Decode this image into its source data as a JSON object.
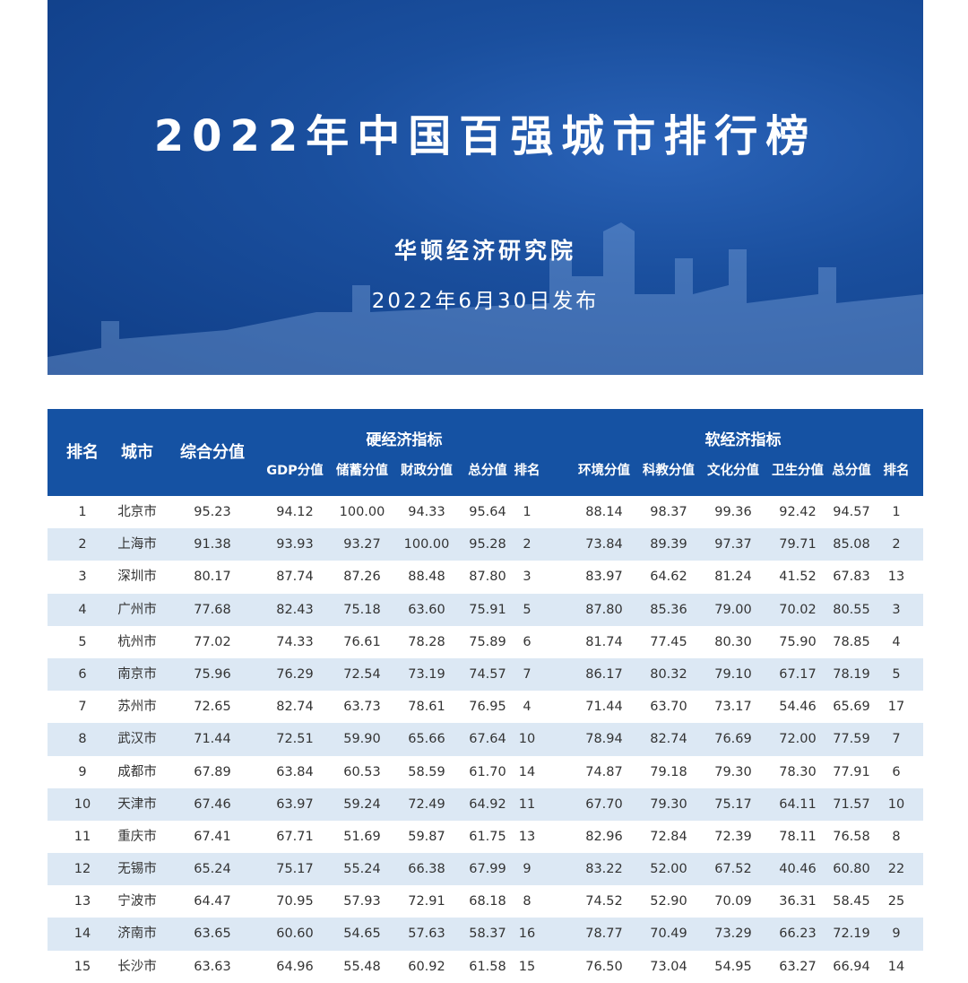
{
  "banner": {
    "title": "2022年中国百强城市排行榜",
    "organization": "华顿经济研究院",
    "date": "2022年6月30日发布"
  },
  "colors": {
    "header_bg": "#1552a3",
    "alt_row": "#dce8f4",
    "banner": "#1a4f9e"
  },
  "table": {
    "headers": {
      "rank": "排名",
      "city": "城市",
      "composite": "综合分值",
      "hard_group": "硬经济指标",
      "soft_group": "软经济指标",
      "hard": [
        "GDP分值",
        "储蓄分值",
        "财政分值",
        "总分值",
        "排名"
      ],
      "soft": [
        "环境分值",
        "科教分值",
        "文化分值",
        "卫生分值",
        "总分值",
        "排名"
      ]
    },
    "rows": [
      [
        "1",
        "北京市",
        "95.23",
        "94.12",
        "100.00",
        "94.33",
        "95.64",
        "1",
        "88.14",
        "98.37",
        "99.36",
        "92.42",
        "94.57",
        "1"
      ],
      [
        "2",
        "上海市",
        "91.38",
        "93.93",
        "93.27",
        "100.00",
        "95.28",
        "2",
        "73.84",
        "89.39",
        "97.37",
        "79.71",
        "85.08",
        "2"
      ],
      [
        "3",
        "深圳市",
        "80.17",
        "87.74",
        "87.26",
        "88.48",
        "87.80",
        "3",
        "83.97",
        "64.62",
        "81.24",
        "41.52",
        "67.83",
        "13"
      ],
      [
        "4",
        "广州市",
        "77.68",
        "82.43",
        "75.18",
        "63.60",
        "75.91",
        "5",
        "87.80",
        "85.36",
        "79.00",
        "70.02",
        "80.55",
        "3"
      ],
      [
        "5",
        "杭州市",
        "77.02",
        "74.33",
        "76.61",
        "78.28",
        "75.89",
        "6",
        "81.74",
        "77.45",
        "80.30",
        "75.90",
        "78.85",
        "4"
      ],
      [
        "6",
        "南京市",
        "75.96",
        "76.29",
        "72.54",
        "73.19",
        "74.57",
        "7",
        "86.17",
        "80.32",
        "79.10",
        "67.17",
        "78.19",
        "5"
      ],
      [
        "7",
        "苏州市",
        "72.65",
        "82.74",
        "63.73",
        "78.61",
        "76.95",
        "4",
        "71.44",
        "63.70",
        "73.17",
        "54.46",
        "65.69",
        "17"
      ],
      [
        "8",
        "武汉市",
        "71.44",
        "72.51",
        "59.90",
        "65.66",
        "67.64",
        "10",
        "78.94",
        "82.74",
        "76.69",
        "72.00",
        "77.59",
        "7"
      ],
      [
        "9",
        "成都市",
        "67.89",
        "63.84",
        "60.53",
        "58.59",
        "61.70",
        "14",
        "74.87",
        "79.18",
        "79.30",
        "78.30",
        "77.91",
        "6"
      ],
      [
        "10",
        "天津市",
        "67.46",
        "63.97",
        "59.24",
        "72.49",
        "64.92",
        "11",
        "67.70",
        "79.30",
        "75.17",
        "64.11",
        "71.57",
        "10"
      ],
      [
        "11",
        "重庆市",
        "67.41",
        "67.71",
        "51.69",
        "59.87",
        "61.75",
        "13",
        "82.96",
        "72.84",
        "72.39",
        "78.11",
        "76.58",
        "8"
      ],
      [
        "12",
        "无锡市",
        "65.24",
        "75.17",
        "55.24",
        "66.38",
        "67.99",
        "9",
        "83.22",
        "52.00",
        "67.52",
        "40.46",
        "60.80",
        "22"
      ],
      [
        "13",
        "宁波市",
        "64.47",
        "70.95",
        "57.93",
        "72.91",
        "68.18",
        "8",
        "74.52",
        "52.90",
        "70.09",
        "36.31",
        "58.45",
        "25"
      ],
      [
        "14",
        "济南市",
        "63.65",
        "60.60",
        "54.65",
        "57.63",
        "58.37",
        "16",
        "78.77",
        "70.49",
        "73.29",
        "66.23",
        "72.19",
        "9"
      ],
      [
        "15",
        "长沙市",
        "63.63",
        "64.96",
        "55.48",
        "60.92",
        "61.58",
        "15",
        "76.50",
        "73.04",
        "54.95",
        "63.27",
        "66.94",
        "14"
      ]
    ]
  }
}
